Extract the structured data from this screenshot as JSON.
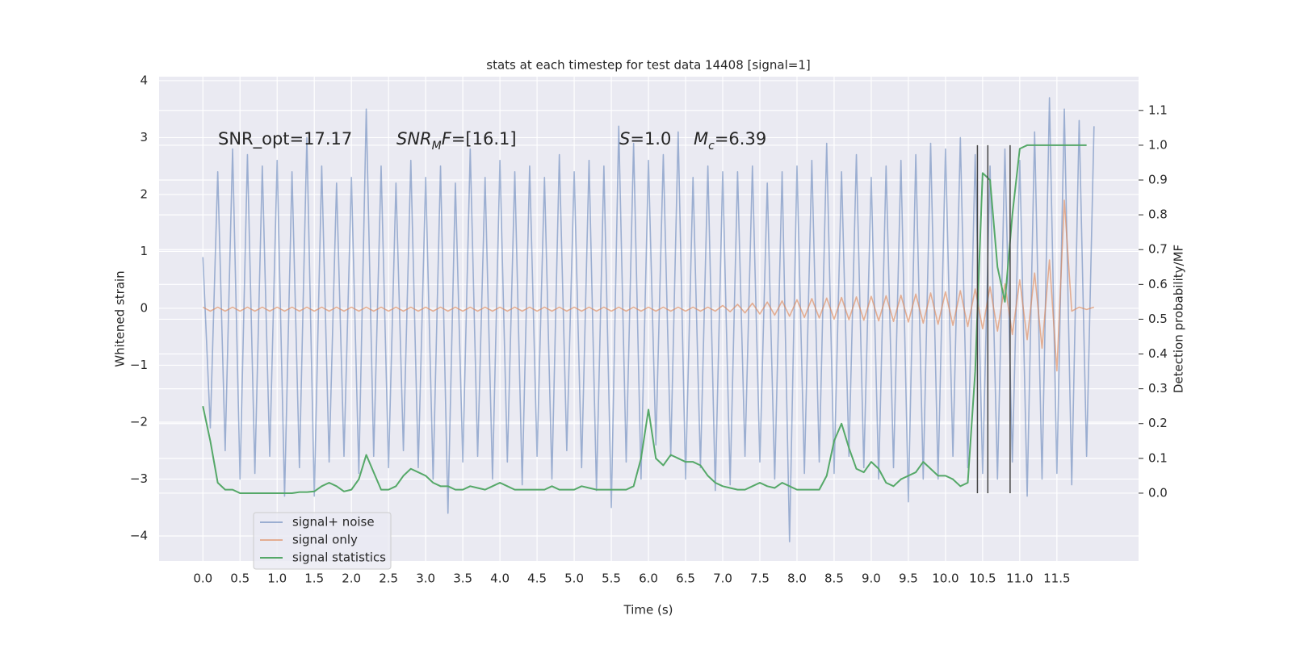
{
  "chart_data": {
    "type": "line",
    "title": "stats at each timestep for test data 14408 [signal=1]",
    "x_label": "Time (s)",
    "y_label": "Whitened strain",
    "y2_label": "Detection probability/MF",
    "annotations": [
      {
        "parts": [
          {
            "text": "SNR_opt=17.17"
          }
        ]
      },
      {
        "parts": [
          {
            "text": "SNR",
            "italic": true
          },
          {
            "text": "M",
            "italic": true,
            "sub": true
          },
          {
            "text": "F",
            "italic": true
          },
          {
            "text": "=[16.1]"
          }
        ]
      },
      {
        "parts": [
          {
            "text": "S",
            "italic": true
          },
          {
            "text": "=1.0"
          }
        ]
      },
      {
        "parts": [
          {
            "text": "M",
            "italic": true
          },
          {
            "text": "c",
            "italic": true,
            "sub": true
          },
          {
            "text": "=6.39"
          }
        ]
      }
    ],
    "x": [
      0.0,
      0.1,
      0.2,
      0.3,
      0.4,
      0.5,
      0.6,
      0.7,
      0.8,
      0.9,
      1.0,
      1.1,
      1.2,
      1.3,
      1.4,
      1.5,
      1.6,
      1.7,
      1.8,
      1.9,
      2.0,
      2.1,
      2.2,
      2.3,
      2.4,
      2.5,
      2.6,
      2.7,
      2.8,
      2.9,
      3.0,
      3.1,
      3.2,
      3.3,
      3.4,
      3.5,
      3.6,
      3.7,
      3.8,
      3.9,
      4.0,
      4.1,
      4.2,
      4.3,
      4.4,
      4.5,
      4.6,
      4.7,
      4.8,
      4.9,
      5.0,
      5.1,
      5.2,
      5.3,
      5.4,
      5.5,
      5.6,
      5.7,
      5.8,
      5.9,
      6.0,
      6.1,
      6.2,
      6.3,
      6.4,
      6.5,
      6.6,
      6.7,
      6.8,
      6.9,
      7.0,
      7.1,
      7.2,
      7.3,
      7.4,
      7.5,
      7.6,
      7.7,
      7.8,
      7.9,
      8.0,
      8.1,
      8.2,
      8.3,
      8.4,
      8.5,
      8.6,
      8.7,
      8.8,
      8.9,
      9.0,
      9.1,
      9.2,
      9.3,
      9.4,
      9.5,
      9.6,
      9.7,
      9.8,
      9.9,
      10.0,
      10.1,
      10.2,
      10.3,
      10.4,
      10.5,
      10.6,
      10.7,
      10.8,
      10.9,
      11.0,
      11.1,
      11.2,
      11.3,
      11.4,
      11.5,
      11.6,
      11.7,
      11.8,
      11.9,
      12.0
    ],
    "series": [
      {
        "name": "signal+ noise",
        "color": "#4c72b0",
        "alpha": 0.5,
        "values": [
          0.9,
          -2.1,
          2.4,
          -2.5,
          2.8,
          -3.0,
          2.7,
          -2.9,
          2.5,
          -2.6,
          2.6,
          -3.3,
          2.4,
          -2.8,
          3.0,
          -3.3,
          2.5,
          -2.7,
          2.2,
          -2.6,
          2.3,
          -2.9,
          3.5,
          -2.6,
          2.5,
          -2.8,
          2.2,
          -2.5,
          2.6,
          -2.8,
          2.3,
          -3.0,
          2.5,
          -3.6,
          2.2,
          -2.7,
          2.8,
          -2.6,
          2.3,
          -3.0,
          2.6,
          -2.7,
          2.4,
          -3.1,
          2.5,
          -2.6,
          2.3,
          -3.0,
          2.7,
          -2.5,
          2.4,
          -2.8,
          2.6,
          -3.2,
          2.5,
          -3.5,
          3.2,
          -2.7,
          2.9,
          -3.0,
          2.6,
          -2.4,
          2.7,
          -2.6,
          3.1,
          -3.0,
          2.3,
          -2.8,
          2.5,
          -3.2,
          2.4,
          -3.1,
          2.4,
          -2.6,
          2.5,
          -2.7,
          2.2,
          -3.0,
          2.4,
          -4.1,
          2.5,
          -2.9,
          2.6,
          -2.7,
          2.9,
          -2.9,
          2.4,
          -2.6,
          2.7,
          -2.8,
          2.3,
          -3.0,
          2.5,
          -2.8,
          2.6,
          -3.4,
          2.7,
          -3.0,
          2.9,
          -3.0,
          2.8,
          -2.6,
          3.0,
          -2.8,
          2.7,
          -2.9,
          2.5,
          -3.0,
          2.8,
          -2.7,
          2.6,
          -3.3,
          3.1,
          -3.0,
          3.7,
          -2.9,
          3.5,
          -3.1,
          3.3,
          -2.6,
          3.2
        ]
      },
      {
        "name": "signal only",
        "color": "#dd8452",
        "alpha": 0.6,
        "values": [
          0.02,
          -0.05,
          0.02,
          -0.05,
          0.02,
          -0.05,
          0.02,
          -0.05,
          0.02,
          -0.05,
          0.02,
          -0.05,
          0.02,
          -0.05,
          0.02,
          -0.05,
          0.02,
          -0.05,
          0.02,
          -0.05,
          0.02,
          -0.05,
          0.02,
          -0.05,
          0.02,
          -0.05,
          0.02,
          -0.05,
          0.02,
          -0.05,
          0.02,
          -0.05,
          0.02,
          -0.05,
          0.02,
          -0.05,
          0.02,
          -0.05,
          0.02,
          -0.05,
          0.02,
          -0.05,
          0.02,
          -0.05,
          0.02,
          -0.05,
          0.02,
          -0.05,
          0.02,
          -0.05,
          0.02,
          -0.05,
          0.02,
          -0.05,
          0.02,
          -0.05,
          0.02,
          -0.05,
          0.02,
          -0.05,
          0.02,
          -0.05,
          0.02,
          -0.05,
          0.02,
          -0.05,
          0.02,
          -0.05,
          0.02,
          -0.05,
          0.05,
          -0.06,
          0.07,
          -0.08,
          0.09,
          -0.1,
          0.11,
          -0.12,
          0.13,
          -0.14,
          0.15,
          -0.16,
          0.17,
          -0.17,
          0.18,
          -0.19,
          0.19,
          -0.2,
          0.2,
          -0.21,
          0.21,
          -0.22,
          0.22,
          -0.23,
          0.23,
          -0.24,
          0.25,
          -0.26,
          0.27,
          -0.28,
          0.29,
          -0.3,
          0.31,
          -0.32,
          0.34,
          -0.36,
          0.38,
          -0.4,
          0.43,
          -0.46,
          0.5,
          -0.55,
          0.62,
          -0.7,
          0.85,
          -1.1,
          1.9,
          -0.05,
          0.02,
          -0.02,
          0.02
        ]
      },
      {
        "name": "signal statistics",
        "color": "#55a868",
        "axis": "y2",
        "values": [
          0.25,
          0.15,
          0.03,
          0.01,
          0.01,
          0.0,
          0.0,
          0.0,
          0.0,
          0.0,
          0.0,
          0.0,
          0.0,
          0.003,
          0.003,
          0.005,
          0.02,
          0.03,
          0.02,
          0.005,
          0.01,
          0.04,
          0.11,
          0.06,
          0.01,
          0.01,
          0.02,
          0.05,
          0.07,
          0.06,
          0.05,
          0.03,
          0.02,
          0.02,
          0.01,
          0.01,
          0.02,
          0.015,
          0.01,
          0.02,
          0.03,
          0.02,
          0.01,
          0.01,
          0.01,
          0.01,
          0.01,
          0.02,
          0.01,
          0.01,
          0.01,
          0.02,
          0.015,
          0.01,
          0.01,
          0.01,
          0.01,
          0.01,
          0.02,
          0.1,
          0.24,
          0.1,
          0.08,
          0.11,
          0.1,
          0.09,
          0.09,
          0.08,
          0.05,
          0.03,
          0.02,
          0.015,
          0.01,
          0.01,
          0.02,
          0.03,
          0.02,
          0.015,
          0.03,
          0.02,
          0.01,
          0.01,
          0.01,
          0.01,
          0.05,
          0.15,
          0.2,
          0.13,
          0.07,
          0.06,
          0.09,
          0.07,
          0.03,
          0.02,
          0.04,
          0.05,
          0.06,
          0.09,
          0.07,
          0.05,
          0.05,
          0.04,
          0.02,
          0.03,
          0.35,
          0.92,
          0.9,
          0.65,
          0.55,
          0.8,
          0.99,
          1.0,
          1.0,
          1.0,
          1.0,
          1.0,
          1.0,
          1.0,
          1.0,
          1.0,
          null
        ]
      }
    ],
    "vlines": [
      10.43,
      10.57,
      10.87
    ],
    "vlines_y2": [
      0,
      1
    ],
    "vline_color": "#444444",
    "xlim": [
      -0.59,
      12.6
    ],
    "ylim": [
      -4.44,
      4.07
    ],
    "y2lim": [
      -0.195,
      1.197
    ],
    "xticks": [
      {
        "value": 0,
        "label": "0.0"
      },
      0.5,
      {
        "value": 1,
        "label": "1.0"
      },
      1.5,
      {
        "value": 2,
        "label": "2.0"
      },
      2.5,
      {
        "value": 3,
        "label": "3.0"
      },
      3.5,
      {
        "value": 4,
        "label": "4.0"
      },
      4.5,
      {
        "value": 5,
        "label": "5.0"
      },
      5.5,
      {
        "value": 6,
        "label": "6.0"
      },
      6.5,
      {
        "value": 7,
        "label": "7.0"
      },
      7.5,
      {
        "value": 8,
        "label": "8.0"
      },
      8.5,
      {
        "value": 9,
        "label": "9.0"
      },
      9.5,
      {
        "value": 10,
        "label": "10.0"
      },
      10.5,
      {
        "value": 11,
        "label": "11.0"
      },
      11.5
    ],
    "yticks": [
      {
        "value": -4,
        "label": "−4"
      },
      {
        "value": -3,
        "label": "−3"
      },
      {
        "value": -2,
        "label": "−2"
      },
      {
        "value": -1,
        "label": "−1"
      },
      0,
      1,
      2,
      3,
      4
    ],
    "y2ticks": [
      {
        "value": 0,
        "label": "0.0"
      },
      0.1,
      0.2,
      0.3,
      0.4,
      0.5,
      0.6,
      0.7,
      0.8,
      0.9,
      {
        "value": 1,
        "label": "1.0"
      },
      1.1
    ],
    "grid": true,
    "legend": "lower left"
  }
}
